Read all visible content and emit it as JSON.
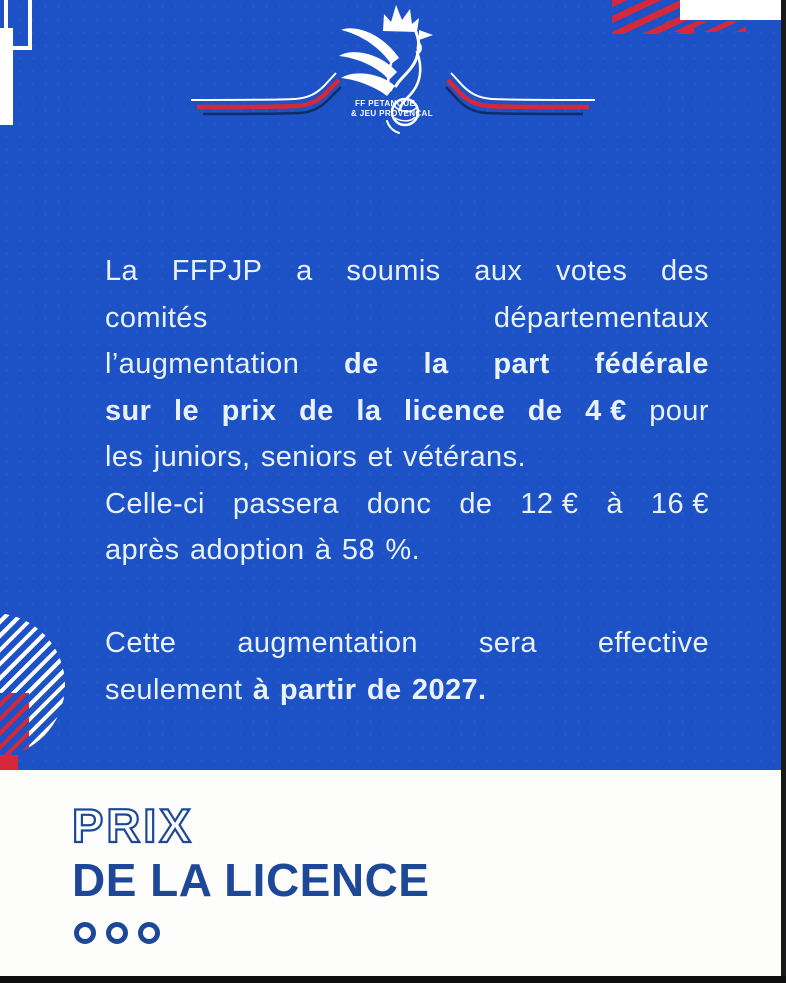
{
  "colors": {
    "blue": "#1c52c5",
    "red": "#d62839",
    "navy": "#1d4898",
    "swoosh_dark": "#0e2c66",
    "text_light": "#e9f1fc"
  },
  "logo": {
    "org_line1": "FF PETANQUE",
    "org_line2": "& JEU PROVENÇAL"
  },
  "body": {
    "lines": [
      {
        "justify": true,
        "segments": [
          [
            "La",
            0
          ],
          [
            "FFPJP",
            0
          ],
          [
            "a",
            0
          ],
          [
            "soumis",
            0
          ],
          [
            "aux",
            0
          ],
          [
            "votes",
            0
          ],
          [
            "des",
            0
          ]
        ]
      },
      {
        "justify": true,
        "segments": [
          [
            "comités",
            0
          ],
          [
            "départementaux",
            0
          ]
        ]
      },
      {
        "justify": true,
        "segments": [
          [
            "l’augmentation",
            0
          ],
          [
            "de",
            1
          ],
          [
            "la",
            1
          ],
          [
            "part",
            1
          ],
          [
            "fédérale",
            1
          ]
        ]
      },
      {
        "justify": true,
        "segments": [
          [
            "sur",
            1
          ],
          [
            "le",
            1
          ],
          [
            "prix",
            1
          ],
          [
            "de",
            1
          ],
          [
            "la",
            1
          ],
          [
            "licence",
            1
          ],
          [
            "de",
            1
          ],
          [
            "4 €",
            1
          ],
          [
            "pour",
            0
          ]
        ]
      },
      {
        "justify": false,
        "segments": [
          [
            "les juniors, seniors et vétérans.",
            0
          ]
        ]
      },
      {
        "justify": true,
        "segments": [
          [
            "Celle-ci",
            0
          ],
          [
            "passera",
            0
          ],
          [
            "donc",
            0
          ],
          [
            "de",
            0
          ],
          [
            "12 €",
            0
          ],
          [
            "à",
            0
          ],
          [
            "16 €",
            0
          ]
        ]
      },
      {
        "justify": false,
        "segments": [
          [
            "après adoption à 58 %.",
            0
          ]
        ]
      },
      {
        "spacer": true
      },
      {
        "justify": true,
        "segments": [
          [
            "Cette",
            0
          ],
          [
            "augmentation",
            0
          ],
          [
            "sera",
            0
          ],
          [
            "effective",
            0
          ]
        ]
      },
      {
        "justify": false,
        "segments": [
          [
            "seulement ",
            0
          ],
          [
            "à partir de 2027.",
            1
          ]
        ]
      }
    ]
  },
  "footer": {
    "title_outline": "PRIX",
    "title_solid": "DE LA LICENCE",
    "dots_count": 3
  }
}
